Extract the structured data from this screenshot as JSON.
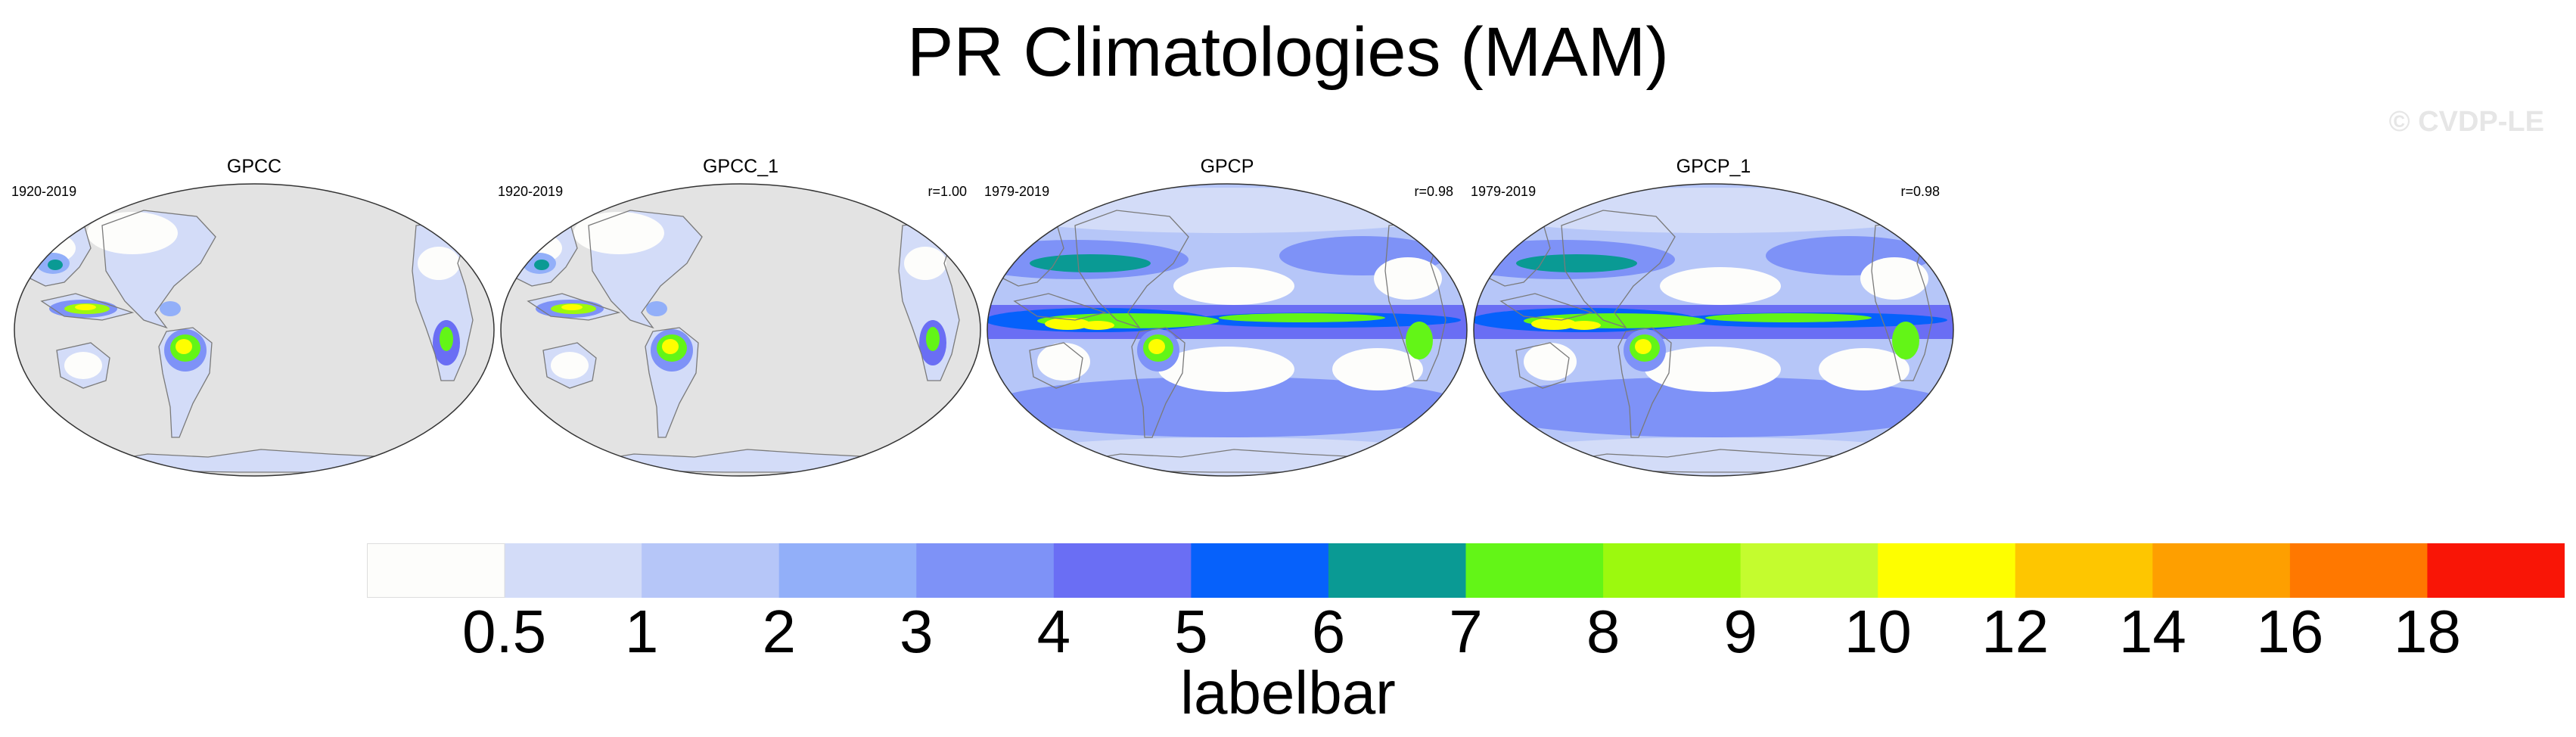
{
  "title": "PR Climatologies (MAM)",
  "watermark": "© CVDP-LE",
  "panels": [
    {
      "title": "GPCC",
      "period": "1920-2019",
      "corr": "",
      "land_only": true
    },
    {
      "title": "GPCC_1",
      "period": "1920-2019",
      "corr": "r=1.00",
      "land_only": true
    },
    {
      "title": "GPCP",
      "period": "1979-2019",
      "corr": "r=0.98",
      "land_only": false
    },
    {
      "title": "GPCP_1",
      "period": "1979-2019",
      "corr": "r=0.98",
      "land_only": false
    }
  ],
  "colorbar": {
    "title": "labelbar",
    "tick_labels": [
      "0.5",
      "1",
      "2",
      "3",
      "4",
      "5",
      "6",
      "7",
      "8",
      "9",
      "10",
      "12",
      "14",
      "16",
      "18"
    ],
    "colors": [
      "#fdfdfb",
      "#d3dcf8",
      "#b6c6f8",
      "#92aff9",
      "#7e92f7",
      "#6a6ef4",
      "#0661fb",
      "#0a9a94",
      "#63f517",
      "#9cf90e",
      "#c4fc2e",
      "#fefe00",
      "#fec600",
      "#fe9f00",
      "#ff7800",
      "#f91506"
    ]
  },
  "colors": {
    "missing_land": "#e3e3e3",
    "coastline": "#7a7a7a"
  }
}
